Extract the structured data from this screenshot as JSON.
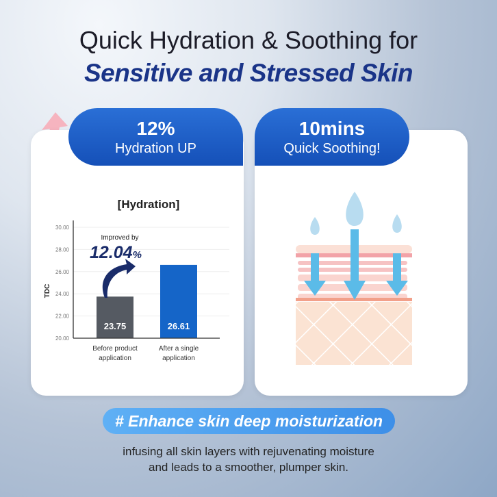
{
  "header": {
    "line1": "Quick Hydration & Soothing for",
    "line2": "Sensitive and Stressed Skin"
  },
  "left_card": {
    "stat": "12%",
    "label": "Hydration UP"
  },
  "right_card": {
    "stat": "10mins",
    "label": "Quick Soothing!"
  },
  "chart_data": {
    "type": "bar",
    "title": "[Hydration]",
    "ylabel": "TDC",
    "ylim": [
      20,
      30
    ],
    "yticks": [
      "20.00",
      "22.00",
      "24.00",
      "26.00",
      "28.00",
      "30.00"
    ],
    "categories": [
      "Before product application",
      "After a single application"
    ],
    "values": [
      23.75,
      26.61
    ],
    "data_labels": [
      "23.75",
      "26.61"
    ],
    "colors": [
      "#555a62",
      "#1565c8"
    ],
    "annotation": {
      "text": "Improved by",
      "value": "12.04",
      "unit": "%"
    },
    "grid": true
  },
  "footer": {
    "tag": "# Enhance skin deep moisturization",
    "line1": "infusing all skin layers with rejuvenating moisture",
    "line2": "and leads to a smoother, plumper skin."
  }
}
